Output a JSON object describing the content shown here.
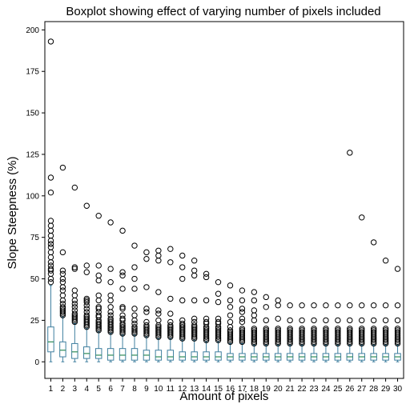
{
  "chart_data": {
    "type": "boxplot",
    "title": "Boxplot showing effect of  varying number of pixels included",
    "xlabel": "Amount of pixels",
    "ylabel": "Slope Steepness (%)",
    "ylim": [
      -10,
      205
    ],
    "yticks": [
      0,
      25,
      50,
      75,
      100,
      125,
      150,
      175,
      200
    ],
    "grid": false,
    "colors": {
      "box": "#3f7f9f",
      "median": "#2e8b57",
      "whisker": "#3f7f9f",
      "outlier": "#000000"
    },
    "categories": [
      "1",
      "2",
      "3",
      "4",
      "5",
      "6",
      "7",
      "8",
      "9",
      "10",
      "11",
      "12",
      "13",
      "14",
      "15",
      "16",
      "17",
      "18",
      "19",
      "20",
      "21",
      "22",
      "23",
      "24",
      "25",
      "26",
      "27",
      "28",
      "29",
      "30"
    ],
    "boxes": [
      {
        "min": 0,
        "q1": 6,
        "median": 12,
        "q3": 21,
        "max": 46,
        "outliers": [
          48,
          50,
          53,
          55,
          56,
          58,
          60,
          63,
          66,
          69,
          71,
          73,
          76,
          79,
          82,
          85,
          102,
          111,
          193
        ]
      },
      {
        "min": 0,
        "q1": 3,
        "median": 7,
        "q3": 12,
        "max": 27,
        "outliers": [
          28,
          29,
          30,
          31,
          32,
          33,
          35,
          37,
          40,
          43,
          45,
          48,
          50,
          53,
          55,
          66,
          117
        ]
      },
      {
        "min": 0,
        "q1": 2,
        "median": 6,
        "q3": 11,
        "max": 23,
        "outliers": [
          24,
          25,
          26,
          27,
          28,
          29,
          31,
          33,
          35,
          37,
          40,
          43,
          56,
          57,
          105
        ]
      },
      {
        "min": 0,
        "q1": 2,
        "median": 5,
        "q3": 9,
        "max": 20,
        "outliers": [
          21,
          22,
          23,
          24,
          25,
          26,
          27,
          28,
          30,
          32,
          34,
          36,
          37,
          38,
          54,
          58,
          94
        ]
      },
      {
        "min": 0,
        "q1": 2,
        "median": 4,
        "q3": 8,
        "max": 18,
        "outliers": [
          19,
          20,
          21,
          22,
          23,
          24,
          25,
          27,
          28,
          30,
          32,
          33,
          37,
          40,
          49,
          52,
          58,
          88
        ]
      },
      {
        "min": 0,
        "q1": 1,
        "median": 4,
        "q3": 8,
        "max": 17,
        "outliers": [
          18,
          19,
          20,
          21,
          22,
          23,
          24,
          25,
          26,
          28,
          30,
          33,
          37,
          40,
          48,
          56,
          84
        ]
      },
      {
        "min": 0,
        "q1": 1,
        "median": 4,
        "q3": 8,
        "max": 16,
        "outliers": [
          17,
          18,
          19,
          20,
          21,
          22,
          23,
          25,
          26,
          28,
          32,
          33,
          44,
          52,
          54,
          79
        ]
      },
      {
        "min": 0,
        "q1": 1,
        "median": 4,
        "q3": 8,
        "max": 16,
        "outliers": [
          17,
          18,
          19,
          20,
          21,
          23,
          25,
          28,
          32,
          44,
          50,
          57,
          70
        ]
      },
      {
        "min": 0,
        "q1": 1,
        "median": 4,
        "q3": 7,
        "max": 15,
        "outliers": [
          16,
          17,
          18,
          19,
          20,
          21,
          22,
          24,
          30,
          32,
          45,
          62,
          66
        ]
      },
      {
        "min": 0,
        "q1": 1,
        "median": 3,
        "q3": 7,
        "max": 14,
        "outliers": [
          15,
          16,
          17,
          18,
          19,
          20,
          21,
          22,
          25,
          29,
          31,
          42,
          61,
          64,
          67
        ]
      },
      {
        "min": 0,
        "q1": 1,
        "median": 3,
        "q3": 7,
        "max": 14,
        "outliers": [
          15,
          16,
          17,
          18,
          19,
          20,
          21,
          22,
          24,
          29,
          38,
          60,
          68
        ]
      },
      {
        "min": 0,
        "q1": 1,
        "median": 3,
        "q3": 6,
        "max": 13,
        "outliers": [
          14,
          15,
          16,
          17,
          18,
          19,
          20,
          21,
          22,
          23,
          25,
          37,
          50,
          57,
          64
        ]
      },
      {
        "min": 0,
        "q1": 1,
        "median": 3,
        "q3": 6,
        "max": 13,
        "outliers": [
          14,
          15,
          16,
          17,
          18,
          19,
          20,
          21,
          22,
          24,
          26,
          37,
          52,
          55,
          61
        ]
      },
      {
        "min": 0,
        "q1": 1,
        "median": 3,
        "q3": 6,
        "max": 12,
        "outliers": [
          13,
          14,
          15,
          16,
          17,
          18,
          19,
          20,
          21,
          23,
          24,
          26,
          37,
          51,
          53
        ]
      },
      {
        "min": 0,
        "q1": 1,
        "median": 3,
        "q3": 6,
        "max": 12,
        "outliers": [
          13,
          14,
          15,
          16,
          17,
          18,
          19,
          20,
          21,
          23,
          24,
          26,
          36,
          41,
          48
        ]
      },
      {
        "min": 0,
        "q1": 1,
        "median": 3,
        "q3": 5,
        "max": 11,
        "outliers": [
          12,
          13,
          14,
          15,
          16,
          17,
          18,
          19,
          21,
          24,
          28,
          33,
          37,
          46
        ]
      },
      {
        "min": 0,
        "q1": 1,
        "median": 3,
        "q3": 5,
        "max": 11,
        "outliers": [
          12,
          13,
          14,
          15,
          16,
          17,
          18,
          19,
          20,
          24,
          26,
          30,
          32,
          37,
          43
        ]
      },
      {
        "min": 0,
        "q1": 1,
        "median": 3,
        "q3": 5,
        "max": 10,
        "outliers": [
          11,
          12,
          13,
          14,
          15,
          16,
          17,
          18,
          19,
          20,
          25,
          28,
          31,
          37,
          42
        ]
      },
      {
        "min": 0,
        "q1": 1,
        "median": 3,
        "q3": 5,
        "max": 10,
        "outliers": [
          11,
          12,
          13,
          14,
          15,
          16,
          17,
          18,
          19,
          20,
          25,
          33,
          39
        ]
      },
      {
        "min": 0,
        "q1": 1,
        "median": 3,
        "q3": 5,
        "max": 10,
        "outliers": [
          11,
          12,
          13,
          14,
          15,
          16,
          17,
          18,
          19,
          20,
          26,
          34,
          37
        ]
      },
      {
        "min": 0,
        "q1": 1,
        "median": 3,
        "q3": 5,
        "max": 10,
        "outliers": [
          11,
          12,
          13,
          14,
          15,
          16,
          17,
          18,
          19,
          20,
          25,
          34
        ]
      },
      {
        "min": 0,
        "q1": 1,
        "median": 3,
        "q3": 5,
        "max": 10,
        "outliers": [
          11,
          12,
          13,
          14,
          15,
          16,
          17,
          18,
          19,
          20,
          25,
          34
        ]
      },
      {
        "min": 0,
        "q1": 1,
        "median": 3,
        "q3": 5,
        "max": 10,
        "outliers": [
          11,
          12,
          13,
          14,
          15,
          16,
          17,
          18,
          19,
          20,
          25,
          34
        ]
      },
      {
        "min": 0,
        "q1": 1,
        "median": 3,
        "q3": 5,
        "max": 10,
        "outliers": [
          11,
          12,
          13,
          14,
          15,
          16,
          17,
          18,
          19,
          20,
          25,
          34
        ]
      },
      {
        "min": 0,
        "q1": 1,
        "median": 3,
        "q3": 5,
        "max": 10,
        "outliers": [
          11,
          12,
          13,
          14,
          15,
          16,
          17,
          18,
          19,
          20,
          25,
          34
        ]
      },
      {
        "min": 0,
        "q1": 1,
        "median": 3,
        "q3": 5,
        "max": 10,
        "outliers": [
          11,
          12,
          13,
          14,
          15,
          16,
          17,
          18,
          19,
          20,
          25,
          34,
          126
        ]
      },
      {
        "min": 0,
        "q1": 1,
        "median": 3,
        "q3": 5,
        "max": 10,
        "outliers": [
          11,
          12,
          13,
          14,
          15,
          16,
          17,
          18,
          19,
          20,
          25,
          34,
          87
        ]
      },
      {
        "min": 0,
        "q1": 1,
        "median": 3,
        "q3": 5,
        "max": 10,
        "outliers": [
          11,
          12,
          13,
          14,
          15,
          16,
          17,
          18,
          19,
          20,
          25,
          34,
          72
        ]
      },
      {
        "min": 0,
        "q1": 1,
        "median": 3,
        "q3": 5,
        "max": 10,
        "outliers": [
          11,
          12,
          13,
          14,
          15,
          16,
          17,
          18,
          19,
          20,
          25,
          34,
          61
        ]
      },
      {
        "min": 0,
        "q1": 1,
        "median": 3,
        "q3": 5,
        "max": 10,
        "outliers": [
          11,
          12,
          13,
          14,
          15,
          16,
          17,
          18,
          19,
          20,
          25,
          34,
          56
        ]
      }
    ]
  }
}
